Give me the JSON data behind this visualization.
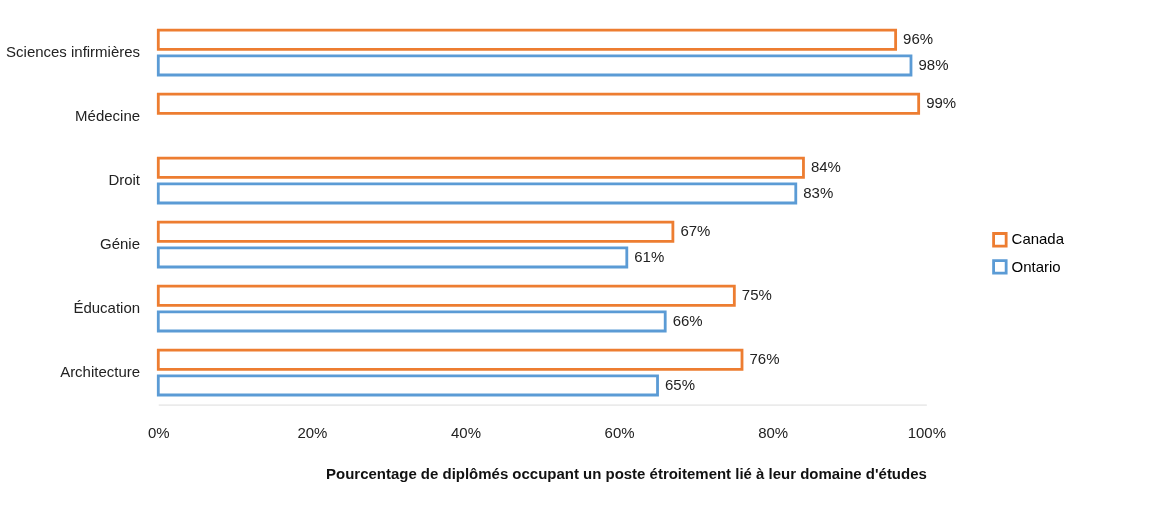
{
  "chart_data": {
    "type": "bar",
    "orientation": "horizontal",
    "xlabel": "Pourcentage de diplômés occupant un poste étroitement lié à leur domaine d'études",
    "categories": [
      "Sciences infirmières",
      "Médecine",
      "Droit",
      "Génie",
      "Éducation",
      "Architecture"
    ],
    "series": [
      {
        "name": "Canada",
        "color": "#ed7d31",
        "values": [
          96,
          99,
          84,
          67,
          75,
          76
        ],
        "value_labels": [
          "96%",
          "99%",
          "84%",
          "67%",
          "75%",
          "76%"
        ]
      },
      {
        "name": "Ontario",
        "color": "#5b9bd5",
        "values": [
          98,
          null,
          83,
          61,
          66,
          65
        ],
        "value_labels": [
          "98%",
          null,
          "83%",
          "61%",
          "66%",
          "65%"
        ]
      }
    ],
    "xlim": [
      0,
      100
    ],
    "xticks": [
      {
        "value": 0,
        "label": "0%"
      },
      {
        "value": 20,
        "label": "20%"
      },
      {
        "value": 40,
        "label": "40%"
      },
      {
        "value": 60,
        "label": "60%"
      },
      {
        "value": 80,
        "label": "80%"
      },
      {
        "value": 100,
        "label": "100%"
      }
    ],
    "grid": false,
    "legend": "right"
  }
}
